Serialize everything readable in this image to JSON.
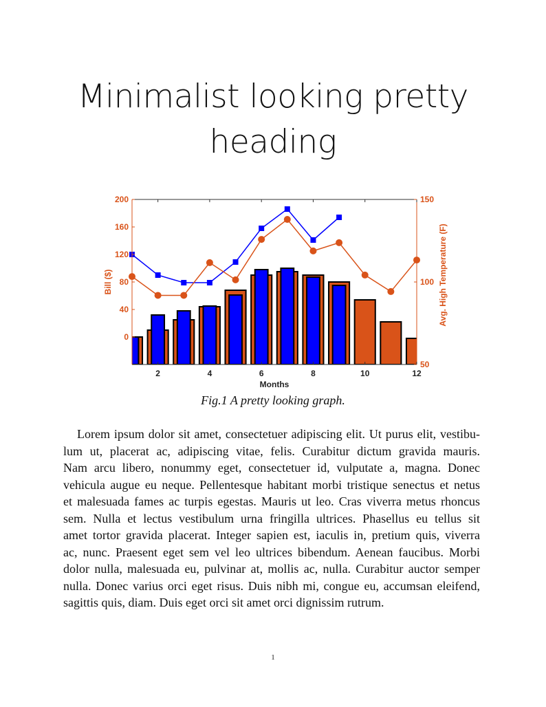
{
  "title_lines": [
    "Minimalist looking pretty",
    "heading"
  ],
  "caption": "Fig.1 A pretty looking graph.",
  "paragraph_lines": [
    "Lorem ipsum dolor sit amet, consectetuer adipiscing elit. Ut purus elit, vestibu-",
    "lum ut, placerat ac, adipiscing vitae, felis. Curabitur dictum gravida mauris.",
    "Nam arcu libero, nonummy eget, consectetuer id, vulputate a, magna. Donec",
    "vehicula augue eu neque. Pellentesque habitant morbi tristique senectus et netus",
    "et malesuada fames ac turpis egestas. Mauris ut leo. Cras viverra metus rhoncus",
    "sem. Nulla et lectus vestibulum urna fringilla ultrices. Phasellus eu tellus sit",
    "amet tortor gravida placerat. Integer sapien est, iaculis in, pretium quis, viverra",
    "ac, nunc. Praesent eget sem vel leo ultrices bibendum. Aenean faucibus. Morbi",
    "dolor nulla, malesuada eu, pulvinar at, mollis ac, nulla. Curabitur auctor semper",
    "nulla. Donec varius orci eget risus. Duis nibh mi, congue eu, accumsan eleifend,",
    "sagittis quis, diam. Duis eget orci sit amet orci dignissim rutrum."
  ],
  "page_number": "1",
  "chart_data": {
    "type": "bar",
    "title": "",
    "xlabel": "Months",
    "ylabel": "Bill ($)",
    "ylabel_right": "Avg. High Temperature (F)",
    "xlim": [
      1,
      12
    ],
    "ylim": [
      -40,
      200
    ],
    "ylim_right": [
      50,
      150
    ],
    "xticks": [
      2,
      4,
      6,
      8,
      10,
      12
    ],
    "yticks": [
      0,
      40,
      80,
      120,
      160,
      200
    ],
    "yticks_right": [
      50,
      100,
      150
    ],
    "grid": false,
    "colors": {
      "blue": "#0000ff",
      "orange": "#d95319",
      "edge": "#000000"
    },
    "x": [
      1,
      2,
      3,
      4,
      5,
      6,
      7,
      8,
      9,
      10,
      11,
      12
    ],
    "bars": [
      {
        "color": "orange",
        "axis": "left",
        "values": [
          0,
          10,
          25,
          44,
          68,
          90,
          95,
          90,
          80,
          54,
          22,
          -2
        ]
      },
      {
        "color": "blue",
        "axis": "left",
        "values": [
          0,
          32,
          38,
          45,
          61,
          98,
          100,
          87,
          75,
          null,
          null,
          null
        ]
      }
    ],
    "lines": [
      {
        "color": "blue",
        "marker": "square",
        "axis": "left",
        "values": [
          120,
          90,
          79,
          79,
          109,
          158,
          186,
          141,
          174,
          null,
          null,
          null
        ]
      },
      {
        "color": "orange",
        "marker": "circle",
        "axis": "right",
        "values": [
          103.3,
          91.9,
          91.9,
          111.7,
          101.3,
          125.8,
          137.9,
          118.8,
          123.8,
          104.2,
          94.2,
          113.3
        ]
      }
    ]
  }
}
